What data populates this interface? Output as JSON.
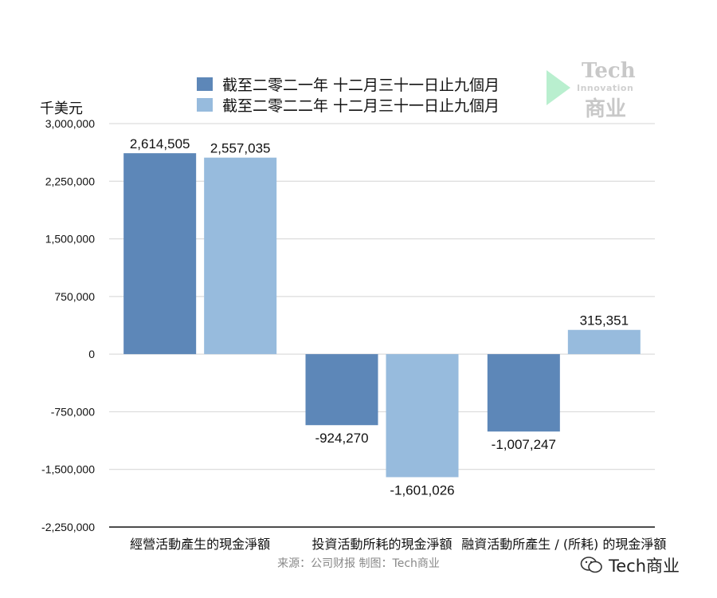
{
  "legend": {
    "items": [
      {
        "label": "截至二零二一年 十二月三十一日止九個月",
        "color": "#5d87b8"
      },
      {
        "label": "截至二零二二年 十二月三十一日止九個月",
        "color": "#97bbdd"
      }
    ]
  },
  "unit_label": "千美元",
  "source": "来源：公司财报 制图：Tech商业",
  "watermark": {
    "line1": "Tech",
    "line2": "Innovation",
    "line3": "商业"
  },
  "footer": {
    "text": "Tech商业",
    "icon": "wechat-icon"
  },
  "chart_data": {
    "type": "bar",
    "categories": [
      "經營活動產生的現金淨額",
      "投資活動所耗的現金淨額",
      "融資活動所產生 / (所耗) 的現金淨額"
    ],
    "series": [
      {
        "name": "截至二零二一年 十二月三十一日止九個月",
        "values": [
          2614505,
          -924270,
          -1007247
        ],
        "labels": [
          "2,614,505",
          "-924,270",
          "-1,007,247"
        ],
        "color": "#5d87b8"
      },
      {
        "name": "截至二零二二年 十二月三十一日止九個月",
        "values": [
          2557035,
          -1601026,
          315351
        ],
        "labels": [
          "2,557,035",
          "-1,601,026",
          "315,351"
        ],
        "color": "#97bbdd"
      }
    ],
    "ylim": [
      -2250000,
      3000000
    ],
    "yticks": [
      3000000,
      2250000,
      1500000,
      750000,
      0,
      -750000,
      -1500000,
      -2250000
    ],
    "ytick_labels": [
      "3,000,000",
      "2,250,000",
      "1,500,000",
      "750,000",
      "0",
      "-750,000",
      "-1,500,000",
      "-2,250,000"
    ],
    "ylabel": "千美元",
    "grid": true,
    "legend_position": "top"
  }
}
